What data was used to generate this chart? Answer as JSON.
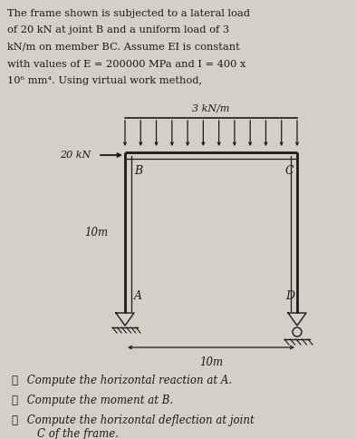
{
  "background_color": "#d4cfc7",
  "text_color": "#1a1a1a",
  "title_lines": [
    "The frame shown is subjected to a lateral load",
    "of 20 kN at joint B and a uniform load of 3",
    "kN/m on member BC. Assume EI is constant",
    "with values of E = 200000 MPa and I = 400 x",
    "10⁶ mm⁴. Using virtual work method,"
  ],
  "label_3kN": "3 kN/m",
  "label_20kN": "20 kN",
  "label_10m_vert": "10m",
  "label_10m_horiz": "10m",
  "label_B": "B",
  "label_C": "C",
  "label_A": "A",
  "label_D": "D",
  "items": [
    [
      "①",
      " Compute the horizontal reaction at A."
    ],
    [
      "②",
      " Compute the moment at B."
    ],
    [
      "③",
      " Compute the horizontal deflection at joint\n    C of the frame."
    ]
  ],
  "frame_color": "#1a1a1a",
  "lw_outer": 2.0,
  "lw_inner": 0.9
}
